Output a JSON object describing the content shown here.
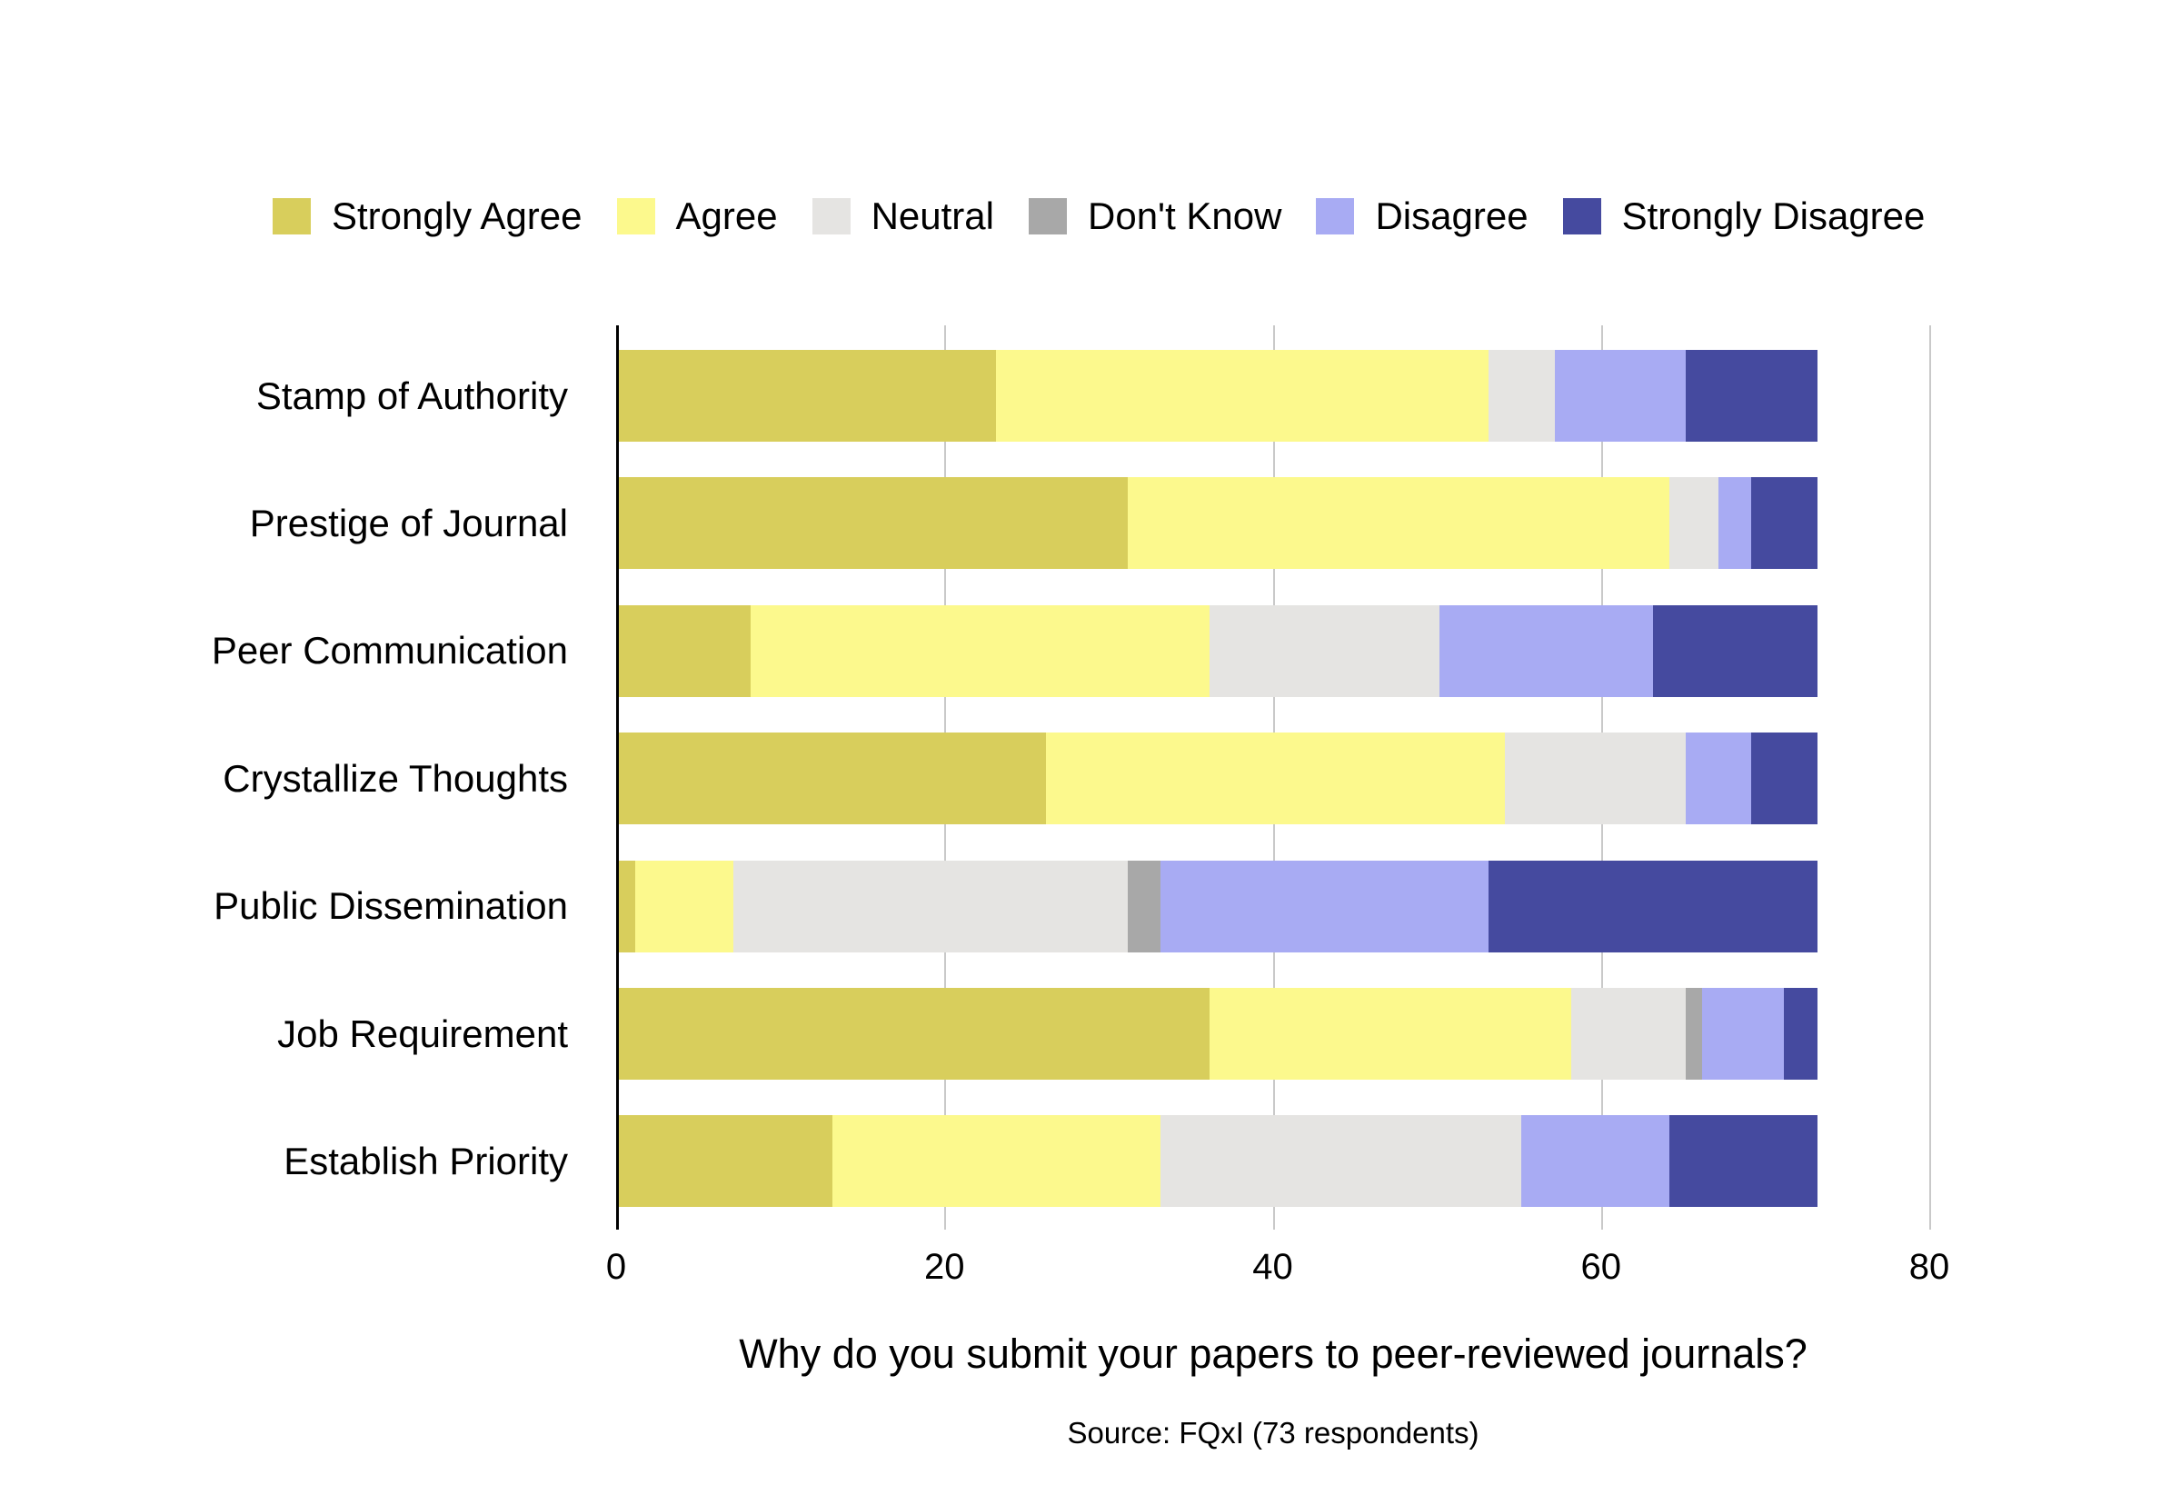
{
  "chart_data": {
    "type": "bar",
    "orientation": "horizontal",
    "stacked": true,
    "title": "Why do you submit your papers to peer-reviewed journals?",
    "source": "Source: FQxI (73 respondents)",
    "categories": [
      "Stamp of Authority",
      "Prestige of Journal",
      "Peer Communication",
      "Crystallize Thoughts",
      "Public Dissemination",
      "Job Requirement",
      "Establish Priority"
    ],
    "series": [
      {
        "name": "Strongly Agree",
        "color": "#d8ce5c",
        "values": [
          23,
          31,
          8,
          26,
          1,
          36,
          13
        ]
      },
      {
        "name": "Agree",
        "color": "#fcf98d",
        "values": [
          30,
          33,
          28,
          28,
          6,
          22,
          20
        ]
      },
      {
        "name": "Neutral",
        "color": "#e5e4e2",
        "values": [
          4,
          3,
          14,
          11,
          24,
          7,
          22
        ]
      },
      {
        "name": "Don't Know",
        "color": "#a8a8a8",
        "values": [
          0,
          0,
          0,
          0,
          2,
          1,
          0
        ]
      },
      {
        "name": "Disagree",
        "color": "#a8abf3",
        "values": [
          8,
          2,
          13,
          4,
          20,
          5,
          9
        ]
      },
      {
        "name": "Strongly Disagree",
        "color": "#454a9f",
        "values": [
          8,
          4,
          10,
          4,
          20,
          2,
          9
        ]
      }
    ],
    "xlim": [
      0,
      80
    ],
    "xticks": [
      0,
      20,
      40,
      60,
      80
    ],
    "grid": true,
    "legend_position": "top",
    "background_color": "#ffffff",
    "gridline_color": "#c9c9c9",
    "axis_color": "#000000"
  }
}
